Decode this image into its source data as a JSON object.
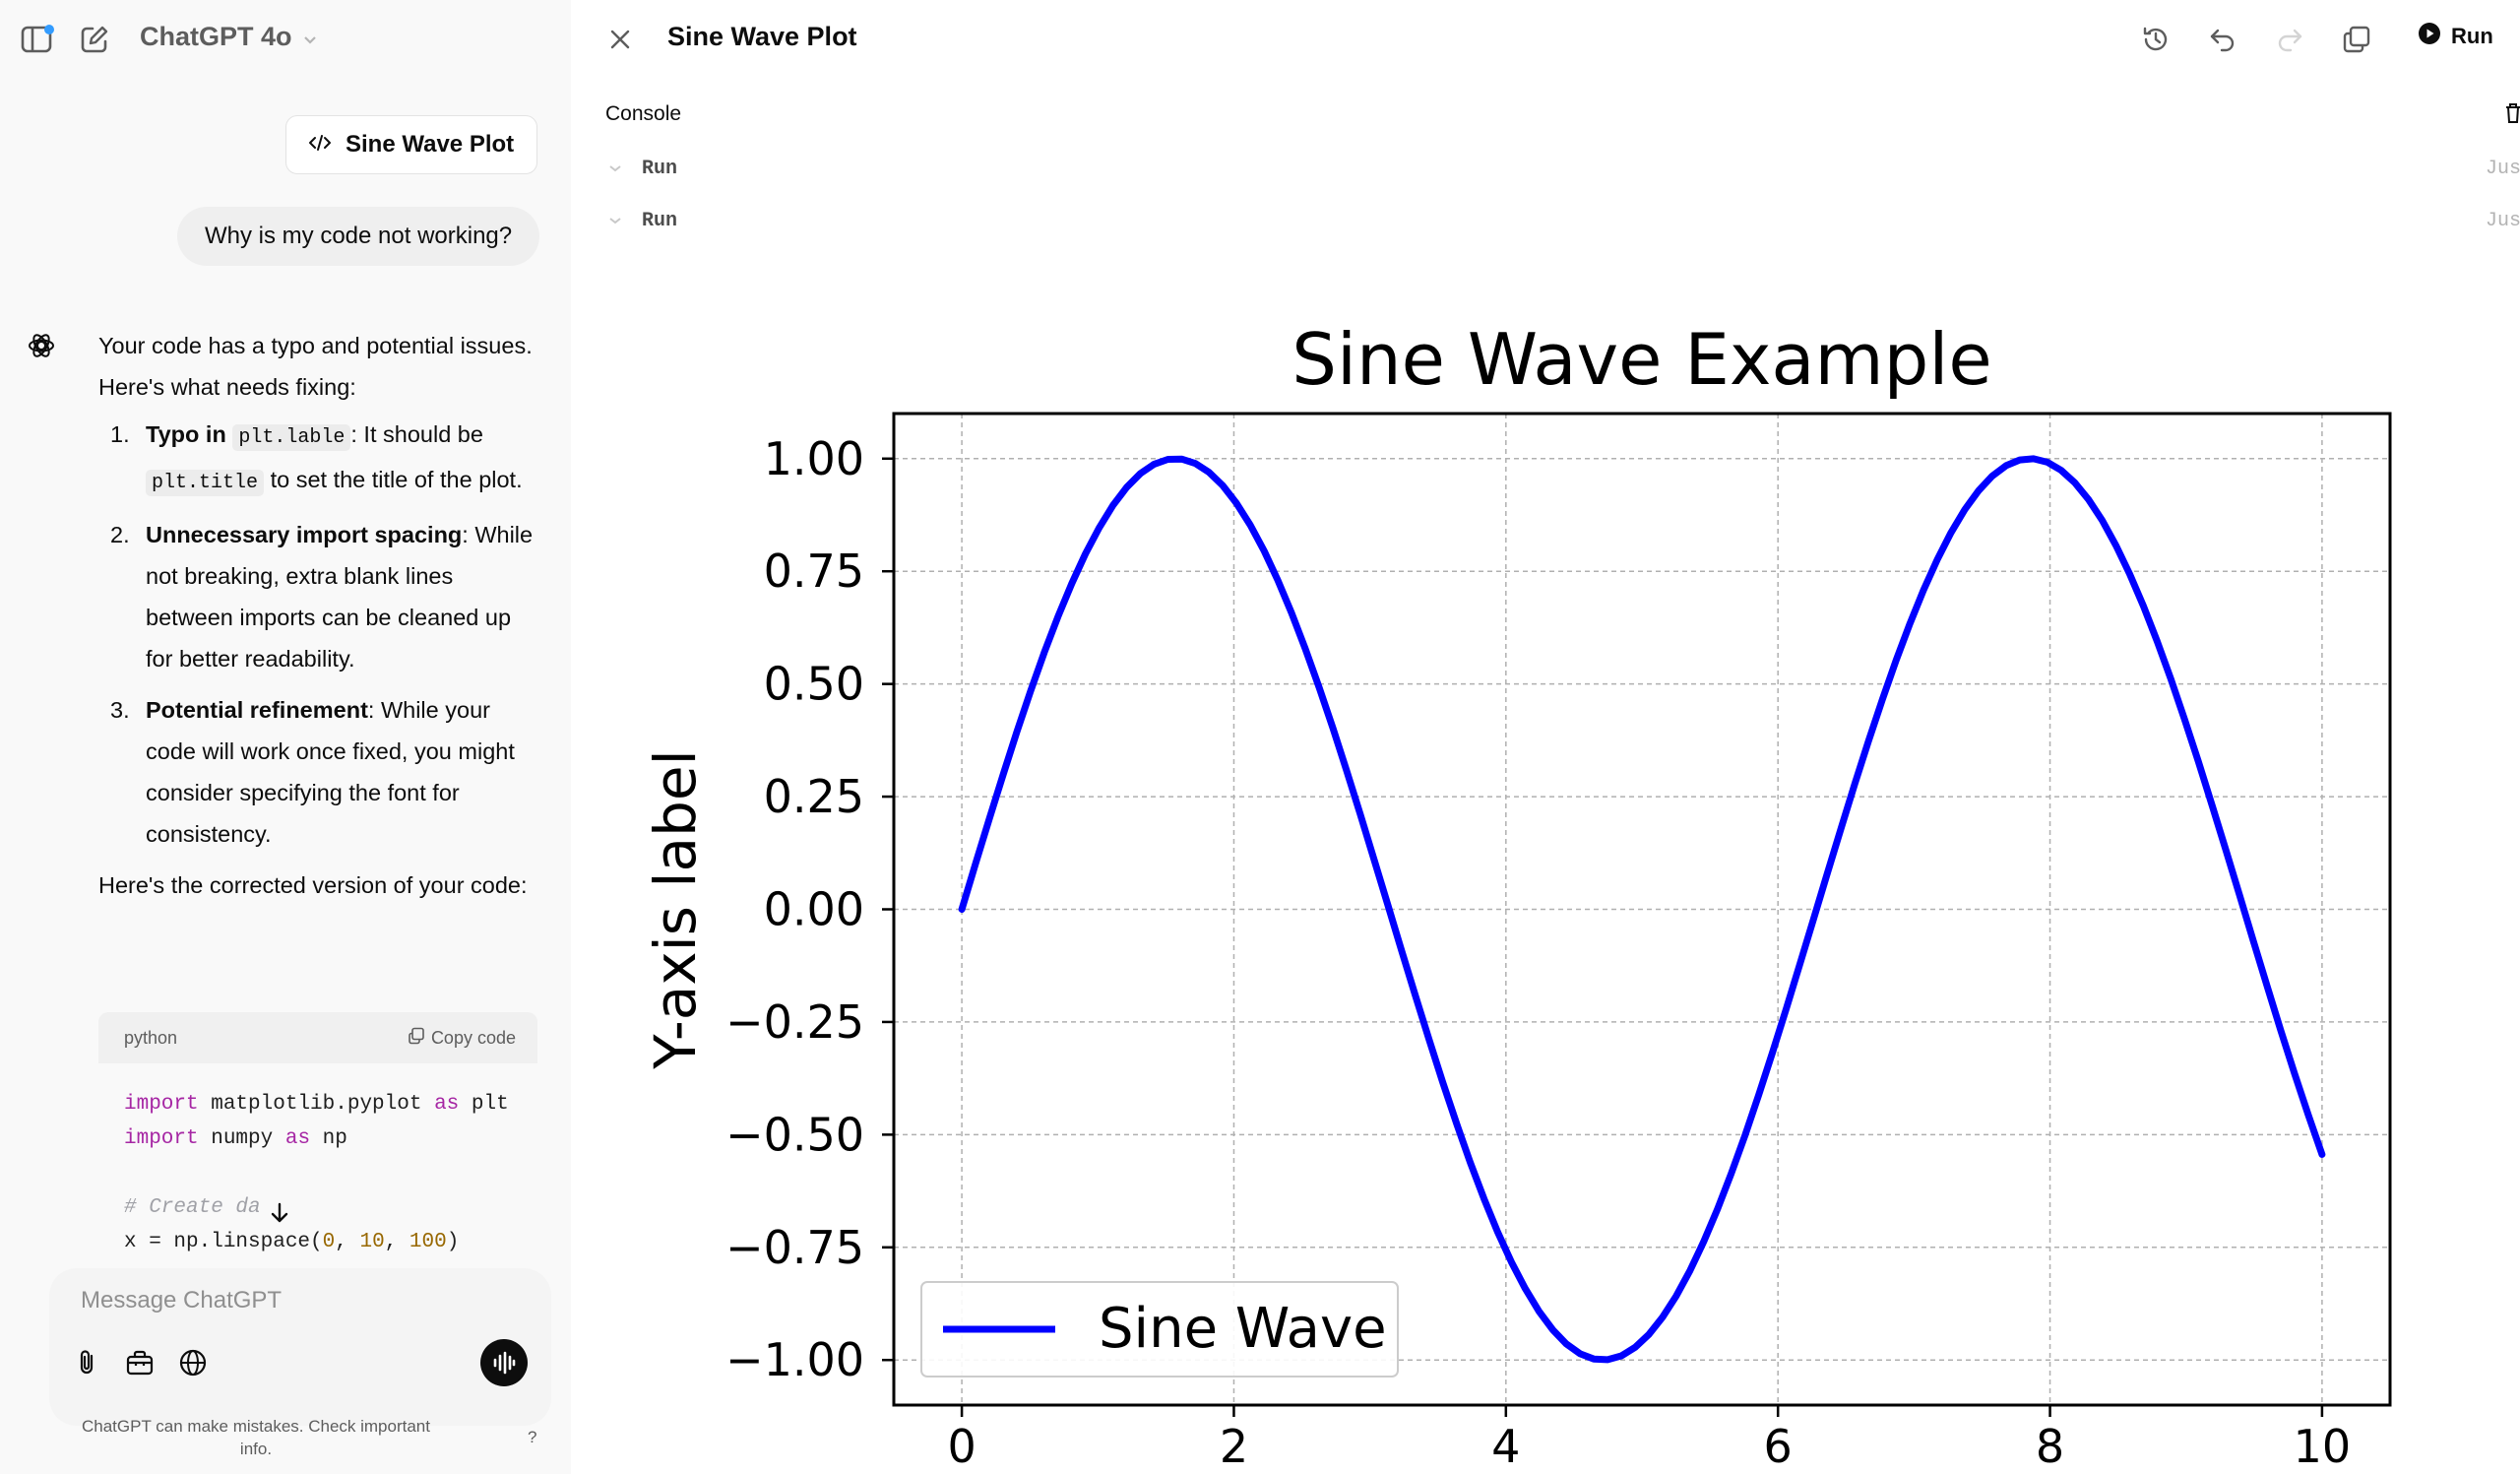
{
  "app": {
    "model_title": "ChatGPT 4o",
    "artifact_chip_label": "Sine Wave Plot"
  },
  "chat": {
    "user_message": "Why is my code not working?",
    "reply_intro": "Your code has a typo and potential issues. Here's what needs fixing:",
    "items": [
      {
        "num": "1.",
        "title": "Typo in",
        "code1": "plt.lable",
        "mid": ": It should be",
        "code2": "plt.title",
        "rest": "to set the title of the plot."
      },
      {
        "num": "2.",
        "title": "Unnecessary import spacing",
        "rest": ": While not breaking, extra blank lines between imports can be cleaned up for better readability."
      },
      {
        "num": "3.",
        "title": "Potential refinement",
        "rest": ": While your code will work once fixed, you might consider specifying the font for consistency."
      }
    ],
    "reply_outro": "Here's the corrected version of your code:",
    "code_block": {
      "language": "python",
      "copy_label": "Copy code",
      "lines": [
        [
          {
            "t": "import",
            "c": "kw"
          },
          {
            "t": " matplotlib.pyplot "
          },
          {
            "t": "as",
            "c": "kw"
          },
          {
            "t": " plt"
          }
        ],
        [
          {
            "t": "import",
            "c": "kw"
          },
          {
            "t": " numpy "
          },
          {
            "t": "as",
            "c": "kw"
          },
          {
            "t": " np"
          }
        ],
        [],
        [
          {
            "t": "# Create da",
            "c": "cm"
          }
        ],
        [
          {
            "t": "x = np.linspace("
          },
          {
            "t": "0",
            "c": "nm"
          },
          {
            "t": ", "
          },
          {
            "t": "10",
            "c": "nm"
          },
          {
            "t": ", "
          },
          {
            "t": "100",
            "c": "nm"
          },
          {
            "t": ")"
          }
        ]
      ]
    },
    "composer_placeholder": "Message ChatGPT",
    "disclaimer": "ChatGPT can make mistakes. Check important info.",
    "help": "?"
  },
  "canvas": {
    "title": "Sine Wave Plot",
    "run_label": "Run",
    "console_label": "Console",
    "console_runs": [
      {
        "label": "Run",
        "time": "Jus"
      },
      {
        "label": "Run",
        "time": "Jus"
      }
    ]
  },
  "chart_data": {
    "type": "line",
    "title": "Sine Wave Example",
    "xlabel": "",
    "ylabel": "Y-axis label",
    "xlim": [
      -0.5,
      10.5
    ],
    "ylim": [
      -1.1,
      1.1
    ],
    "xticks": [
      0,
      2,
      4,
      6,
      8,
      10
    ],
    "xtick_labels": [
      "0",
      "2",
      "4",
      "6",
      "8",
      "10"
    ],
    "yticks": [
      1.0,
      0.75,
      0.5,
      0.25,
      0.0,
      -0.25,
      -0.5,
      -0.75,
      -1.0
    ],
    "ytick_labels": [
      "1.00",
      "0.75",
      "0.50",
      "0.25",
      "0.00",
      "−0.25",
      "−0.50",
      "−0.75",
      "−1.00"
    ],
    "grid": true,
    "legend_position": "lower-left",
    "series": [
      {
        "name": "Sine Wave",
        "color": "#0000ff",
        "function": "sin(x)",
        "x_range": [
          0,
          10
        ],
        "num_points": 100
      }
    ]
  }
}
